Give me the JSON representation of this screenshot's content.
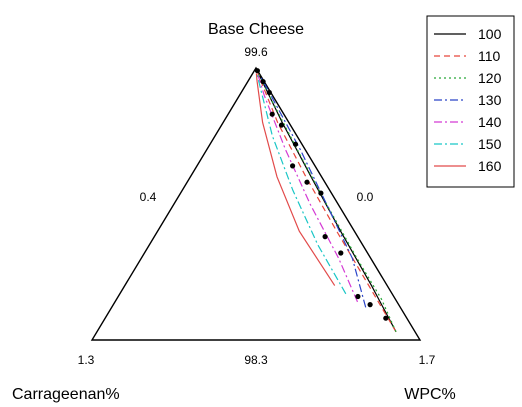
{
  "chart_data": {
    "type": "ternary",
    "title": "",
    "vertex_labels": {
      "top": "Base Cheese",
      "left": "Carrageenan%",
      "right": "WPC%"
    },
    "tick_labels": {
      "top": "99.6",
      "bottom_left": "1.3",
      "bottom_middle": "98.3",
      "bottom_right": "1.7",
      "left_edge_middle": "0.4",
      "right_edge_middle": "0.0"
    },
    "legend": {
      "placement": "top-right",
      "entries": [
        {
          "label": "100",
          "color": "#000000",
          "dash": "solid"
        },
        {
          "label": "110",
          "color": "#e8463a",
          "dash": "dashed"
        },
        {
          "label": "120",
          "color": "#27a838",
          "dash": "dotted"
        },
        {
          "label": "130",
          "color": "#2b44c8",
          "dash": "dashdot"
        },
        {
          "label": "140",
          "color": "#d43ad4",
          "dash": "dashdot"
        },
        {
          "label": "150",
          "color": "#19c6c6",
          "dash": "dashdot"
        },
        {
          "label": "160",
          "color": "#e24a4a",
          "dash": "solid"
        }
      ]
    },
    "contours": [
      {
        "level": "100",
        "points": [
          [
            0.97,
            0.06
          ],
          [
            0.8,
            0.06
          ],
          [
            0.6,
            0.07
          ],
          [
            0.4,
            0.08
          ],
          [
            0.2,
            0.1
          ],
          [
            0.02,
            0.14
          ]
        ]
      },
      {
        "level": "110",
        "points": [
          [
            0.97,
            0.06
          ],
          [
            0.8,
            0.07
          ],
          [
            0.6,
            0.09
          ],
          [
            0.4,
            0.12
          ],
          [
            0.2,
            0.17
          ],
          [
            0.02,
            0.22
          ]
        ]
      },
      {
        "level": "120",
        "points": [
          [
            0.97,
            0.06
          ],
          [
            0.85,
            0.05
          ],
          [
            0.7,
            0.06
          ],
          [
            0.5,
            0.07
          ],
          [
            0.3,
            0.08
          ],
          [
            0.1,
            0.1
          ],
          [
            0.02,
            0.12
          ]
        ]
      },
      {
        "level": "130",
        "points": [
          [
            0.88,
            0.12
          ],
          [
            0.7,
            0.08
          ],
          [
            0.5,
            0.07
          ],
          [
            0.3,
            0.05
          ],
          [
            0.1,
            0.05
          ],
          [
            0.03,
            0.06
          ]
        ]
      },
      {
        "level": "140",
        "points": [
          [
            0.86,
            0.14
          ],
          [
            0.7,
            0.14
          ],
          [
            0.5,
            0.17
          ],
          [
            0.3,
            0.2
          ],
          [
            0.1,
            0.25
          ],
          [
            0.02,
            0.27
          ]
        ]
      },
      {
        "level": "150",
        "points": [
          [
            0.83,
            0.17
          ],
          [
            0.65,
            0.21
          ],
          [
            0.45,
            0.25
          ],
          [
            0.25,
            0.3
          ],
          [
            0.05,
            0.33
          ],
          [
            0.02,
            0.34
          ]
        ]
      },
      {
        "level": "160",
        "points": [
          [
            0.8,
            0.2
          ],
          [
            0.6,
            0.28
          ],
          [
            0.4,
            0.34
          ],
          [
            0.2,
            0.4
          ],
          [
            0.05,
            0.43
          ],
          [
            0.02,
            0.44
          ]
        ]
      }
    ],
    "design_points": [
      [
        0.92,
        0.07
      ],
      [
        0.87,
        0.1
      ],
      [
        0.84,
        0.13
      ],
      [
        0.68,
        0.12
      ],
      [
        0.62,
        0.16
      ],
      [
        0.46,
        0.07
      ],
      [
        0.42,
        0.13
      ],
      [
        0.36,
        0.19
      ],
      [
        0.28,
        0.07
      ],
      [
        0.21,
        0.13
      ],
      [
        0.17,
        0.21
      ],
      [
        0.09,
        0.05
      ],
      [
        0.05,
        0.07
      ],
      [
        0.01,
        0.07
      ]
    ]
  }
}
